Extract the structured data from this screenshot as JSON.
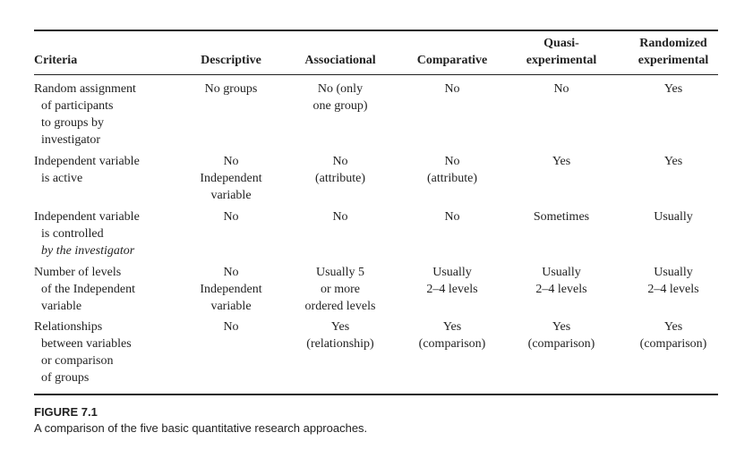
{
  "table": {
    "headers": [
      [
        "Criteria"
      ],
      [
        "Descriptive"
      ],
      [
        "Associational"
      ],
      [
        "Comparative"
      ],
      [
        "Quasi-",
        "experimental"
      ],
      [
        "Randomized",
        "experimental"
      ]
    ],
    "rows": [
      [
        [
          "Random assignment",
          "of participants",
          "to groups by",
          "investigator"
        ],
        [
          "No groups"
        ],
        [
          "No (only",
          "one group)"
        ],
        [
          "No"
        ],
        [
          "No"
        ],
        [
          "Yes"
        ]
      ],
      [
        [
          "Independent variable",
          "is active"
        ],
        [
          "No",
          "Independent",
          "variable"
        ],
        [
          "No",
          "(attribute)"
        ],
        [
          "No",
          "(attribute)"
        ],
        [
          "Yes"
        ],
        [
          "Yes"
        ]
      ],
      [
        [
          "Independent variable",
          "is controlled",
          "by the investigator"
        ],
        [
          "No"
        ],
        [
          "No"
        ],
        [
          "No"
        ],
        [
          "Sometimes"
        ],
        [
          "Usually"
        ]
      ],
      [
        [
          "Number of levels",
          "of the Independent",
          "variable"
        ],
        [
          "No",
          "Independent",
          "variable"
        ],
        [
          "Usually 5",
          "or more",
          "ordered levels"
        ],
        [
          "Usually",
          "2–4 levels"
        ],
        [
          "Usually",
          "2–4 levels"
        ],
        [
          "Usually",
          "2–4 levels"
        ]
      ],
      [
        [
          "Relationships",
          "between variables",
          "or comparison",
          "of groups"
        ],
        [
          "No"
        ],
        [
          "Yes",
          "(relationship)"
        ],
        [
          "Yes",
          "(comparison)"
        ],
        [
          "Yes",
          "(comparison)"
        ],
        [
          "Yes",
          "(comparison)"
        ]
      ]
    ]
  },
  "figure": {
    "label": "FIGURE 7.1",
    "caption": "A comparison of the five basic quantitative research approaches."
  }
}
